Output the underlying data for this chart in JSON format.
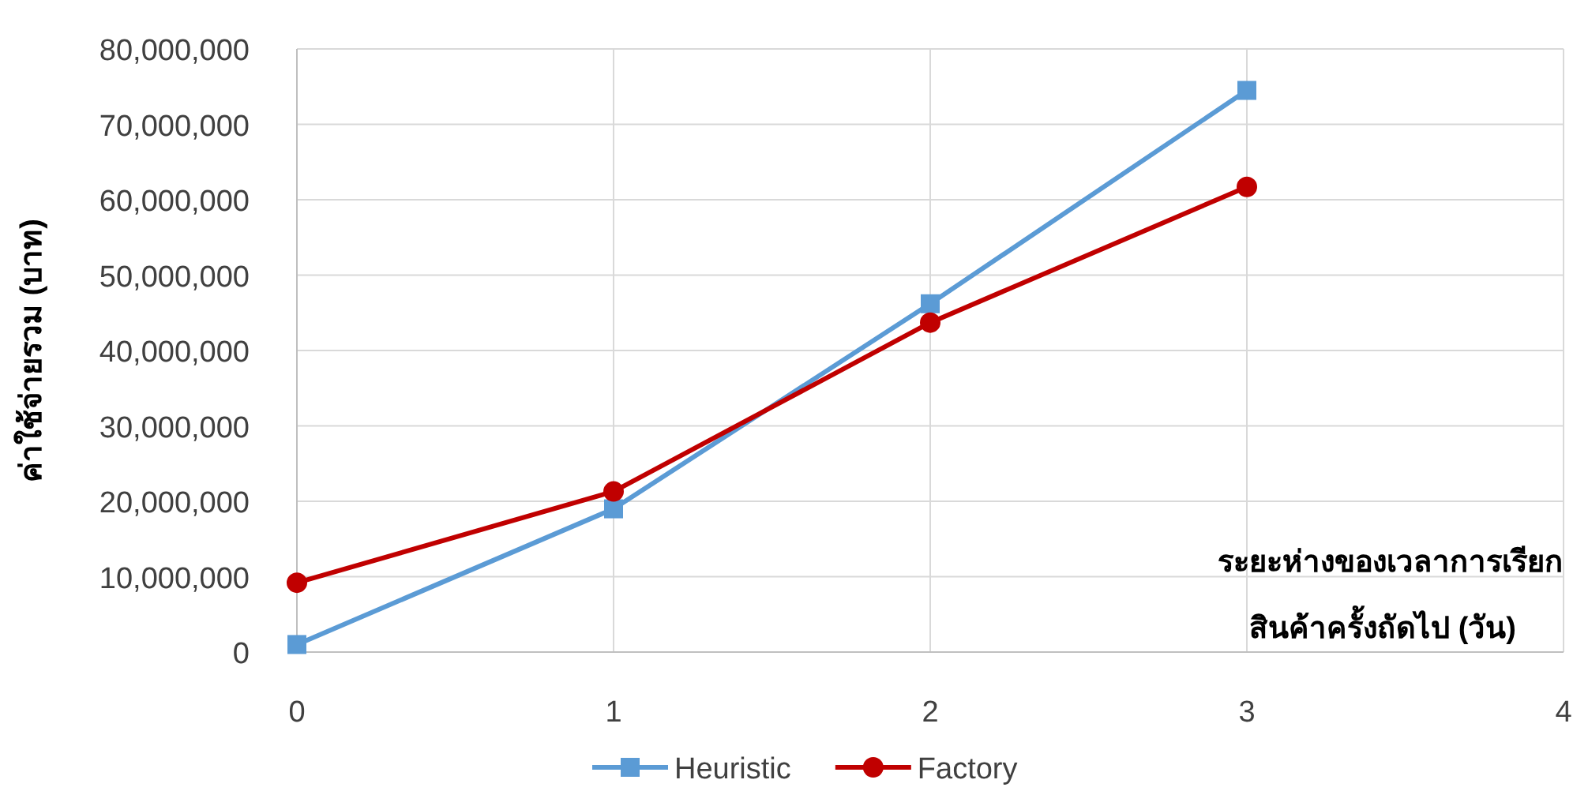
{
  "chart_data": {
    "type": "line",
    "xlabel": "ระยะห่างของเวลาการเรียก\nสินค้าครั้งถัดไป (วัน)",
    "ylabel": "ค่าใช้จ่ายรวม (บาท)",
    "x": [
      0,
      1,
      2,
      3
    ],
    "series": [
      {
        "name": "Heuristic",
        "color": "#5b9bd5",
        "marker": "square",
        "values": [
          1000000,
          19000000,
          46200000,
          74500000
        ]
      },
      {
        "name": "Factory",
        "color": "#c00000",
        "marker": "circle",
        "values": [
          9200000,
          21300000,
          43700000,
          61700000
        ]
      }
    ],
    "xlim": [
      0,
      4
    ],
    "xticks": [
      0,
      1,
      2,
      3,
      4
    ],
    "ylim": [
      0,
      80000000
    ],
    "yticks": [
      {
        "value": 0,
        "label": "0"
      },
      {
        "value": 10000000,
        "label": "10,000,000"
      },
      {
        "value": 20000000,
        "label": "20,000,000"
      },
      {
        "value": 30000000,
        "label": "30,000,000"
      },
      {
        "value": 40000000,
        "label": "40,000,000"
      },
      {
        "value": 50000000,
        "label": "50,000,000"
      },
      {
        "value": 60000000,
        "label": "60,000,000"
      },
      {
        "value": 70000000,
        "label": "70,000,000"
      },
      {
        "value": 80000000,
        "label": "80,000,000"
      }
    ],
    "grid": true,
    "legend": "bottom",
    "line_style": "solid"
  }
}
